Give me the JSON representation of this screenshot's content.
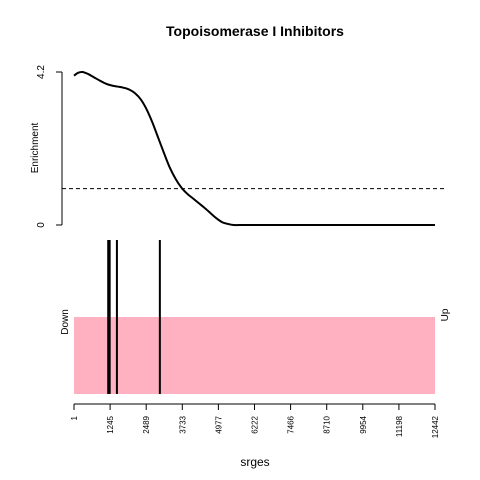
{
  "chart_data": {
    "type": "line",
    "title": "Topoisomerase I Inhibitors",
    "xlabel": "srges",
    "ylabel": "Enrichment",
    "x_ticks": [
      1,
      1245,
      2489,
      3733,
      4977,
      6222,
      7466,
      8710,
      9954,
      11198,
      12442
    ],
    "xlim": [
      1,
      12442
    ],
    "y_ticks": [
      0,
      4.2
    ],
    "ylim": [
      0,
      4.2
    ],
    "reference_line": 1.0,
    "enrichment_curve": {
      "x": [
        1,
        150,
        300,
        500,
        700,
        900,
        1100,
        1300,
        1500,
        1700,
        1900,
        2100,
        2300,
        2500,
        2700,
        2900,
        3100,
        3300,
        3500,
        3700,
        3900,
        4100,
        4300,
        4500,
        4700,
        4900,
        5100,
        5300,
        5500,
        5800,
        6200,
        7000,
        8000,
        9000,
        10000,
        11000,
        12442
      ],
      "y": [
        4.1,
        4.18,
        4.2,
        4.14,
        4.05,
        3.96,
        3.88,
        3.83,
        3.8,
        3.77,
        3.72,
        3.62,
        3.45,
        3.18,
        2.82,
        2.4,
        1.98,
        1.58,
        1.27,
        1.03,
        0.86,
        0.73,
        0.6,
        0.47,
        0.33,
        0.19,
        0.08,
        0.03,
        0.0,
        0.0,
        0.0,
        0.0,
        0.0,
        0.0,
        0.0,
        0.0,
        0.0
      ]
    },
    "hits": [
      1180,
      1230,
      1480,
      2960
    ],
    "bar_left_label": "Down",
    "bar_right_label": "Up",
    "bar_color": "#FFB0C1"
  }
}
